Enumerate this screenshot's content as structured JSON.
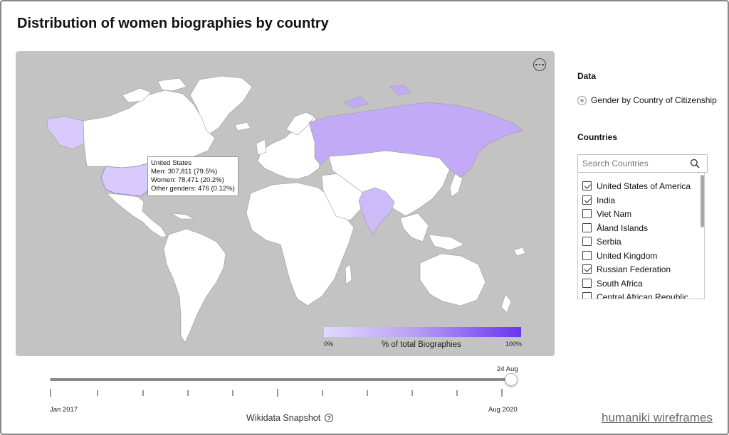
{
  "title": "Distribution of women biographies by country",
  "map": {
    "more_icon": "more-horizontal-icon",
    "tooltip": {
      "country": "United States",
      "men": "Men: 307,811 (79.5%)",
      "women": "Women: 78,471 (20.2%)",
      "other": "Other genders: 476 (0.12%)"
    },
    "legend": {
      "min": "0%",
      "max": "100%",
      "title": "% of total Biographies",
      "color_low": "#e2d8ff",
      "color_high": "#6a35ee"
    },
    "highlighted_countries": [
      {
        "name": "United States of America",
        "color": "#d8cbfb"
      },
      {
        "name": "India",
        "color": "#cdbaf8"
      },
      {
        "name": "Russian Federation",
        "color": "#c2aaf6"
      }
    ],
    "background_color": "#c3c3c3",
    "land_color": "#ffffff"
  },
  "timeline": {
    "current_label": "24 Aug",
    "start_label": "Jan 2017",
    "end_label": "Aug 2020",
    "snapshot_label": "Wikidata Snapshot",
    "help_icon": "help-circle-icon",
    "progress": 1.0
  },
  "sidebar": {
    "data_heading": "Data",
    "data_option": "Gender by Country of Citizenship",
    "countries_heading": "Countries",
    "search_placeholder": "Search Countries",
    "search_icon": "search-icon",
    "countries": [
      {
        "label": "United States of America",
        "checked": true
      },
      {
        "label": "India",
        "checked": true
      },
      {
        "label": "Viet Nam",
        "checked": false
      },
      {
        "label": "Åland Islands",
        "checked": false
      },
      {
        "label": "Serbia",
        "checked": false
      },
      {
        "label": "United Kingdom",
        "checked": false
      },
      {
        "label": "Russian Federation",
        "checked": true
      },
      {
        "label": "South Africa",
        "checked": false
      },
      {
        "label": "Central African Republic",
        "checked": false
      }
    ]
  },
  "footer": {
    "link": "humaniki wireframes"
  }
}
